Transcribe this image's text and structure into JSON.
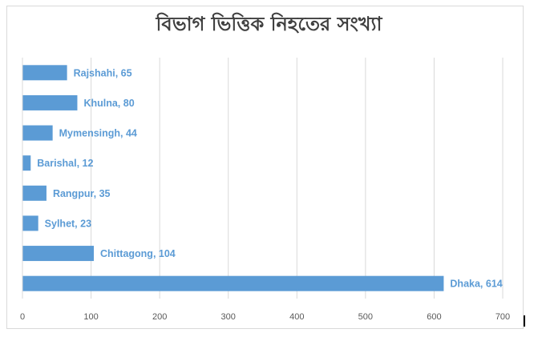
{
  "chart_data": {
    "type": "bar",
    "orientation": "horizontal",
    "title": "বিভাগ ভিত্তিক নিহতের সংখ্যা",
    "categories": [
      "Dhaka",
      "Chittagong",
      "Sylhet",
      "Rangpur",
      "Barishal",
      "Mymensingh",
      "Khulna",
      "Rajshahi"
    ],
    "values": [
      614,
      104,
      23,
      35,
      12,
      44,
      80,
      65
    ],
    "data_labels": [
      "Dhaka, 614",
      "Chittagong, 104",
      "Sylhet, 23",
      "Rangpur, 35",
      "Barishal, 12",
      "Mymensingh, 44",
      "Khulna, 80",
      "Rajshahi, 65"
    ],
    "xlim": [
      0,
      700
    ],
    "xticks": [
      0,
      100,
      200,
      300,
      400,
      500,
      600,
      700
    ],
    "grid": true,
    "legend": "none",
    "bar_color": "#5b9bd5",
    "label_color": "#5b9bd5"
  }
}
